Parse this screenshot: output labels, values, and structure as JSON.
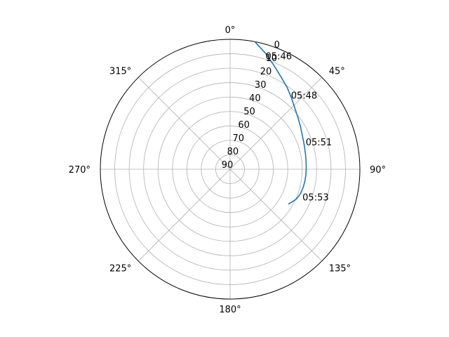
{
  "chart_data": {
    "type": "line",
    "projection": "polar",
    "theta_zero_location": "top",
    "theta_direction": "clockwise",
    "r_inverted": true,
    "r_range": [
      90,
      0
    ],
    "theta_ticks": [
      "0°",
      "45°",
      "90°",
      "135°",
      "180°",
      "225°",
      "270°",
      "315°"
    ],
    "theta_tick_values": [
      0,
      45,
      90,
      135,
      180,
      225,
      270,
      315
    ],
    "r_ticks": [
      0,
      10,
      20,
      30,
      40,
      50,
      60,
      70,
      80,
      90
    ],
    "r_tick_labels": [
      "0",
      "10",
      "20",
      "30",
      "40",
      "50",
      "60",
      "70",
      "80",
      "90"
    ],
    "grid": true,
    "series": [
      {
        "azimuth_deg": [
          11,
          17,
          23,
          29,
          35,
          41,
          47,
          53,
          59,
          64,
          69,
          74,
          79,
          84,
          89,
          94,
          99,
          104,
          109,
          114,
          118,
          121
        ],
        "elevation_deg": [
          0,
          6,
          12,
          17,
          21,
          25,
          28.5,
          31,
          33,
          34.5,
          35.5,
          36.2,
          36.7,
          37,
          37.2,
          37.3,
          37.5,
          37.8,
          38.3,
          39.5,
          41.5,
          43
        ],
        "color": "#1f77b4"
      }
    ],
    "annotations": [
      {
        "text": "05:46",
        "azimuth_deg": 19,
        "elevation_deg": 7
      },
      {
        "text": "05:48",
        "azimuth_deg": 41,
        "elevation_deg": 22
      },
      {
        "text": "05:51",
        "azimuth_deg": 71,
        "elevation_deg": 32
      },
      {
        "text": "05:53",
        "azimuth_deg": 110,
        "elevation_deg": 34
      }
    ]
  }
}
